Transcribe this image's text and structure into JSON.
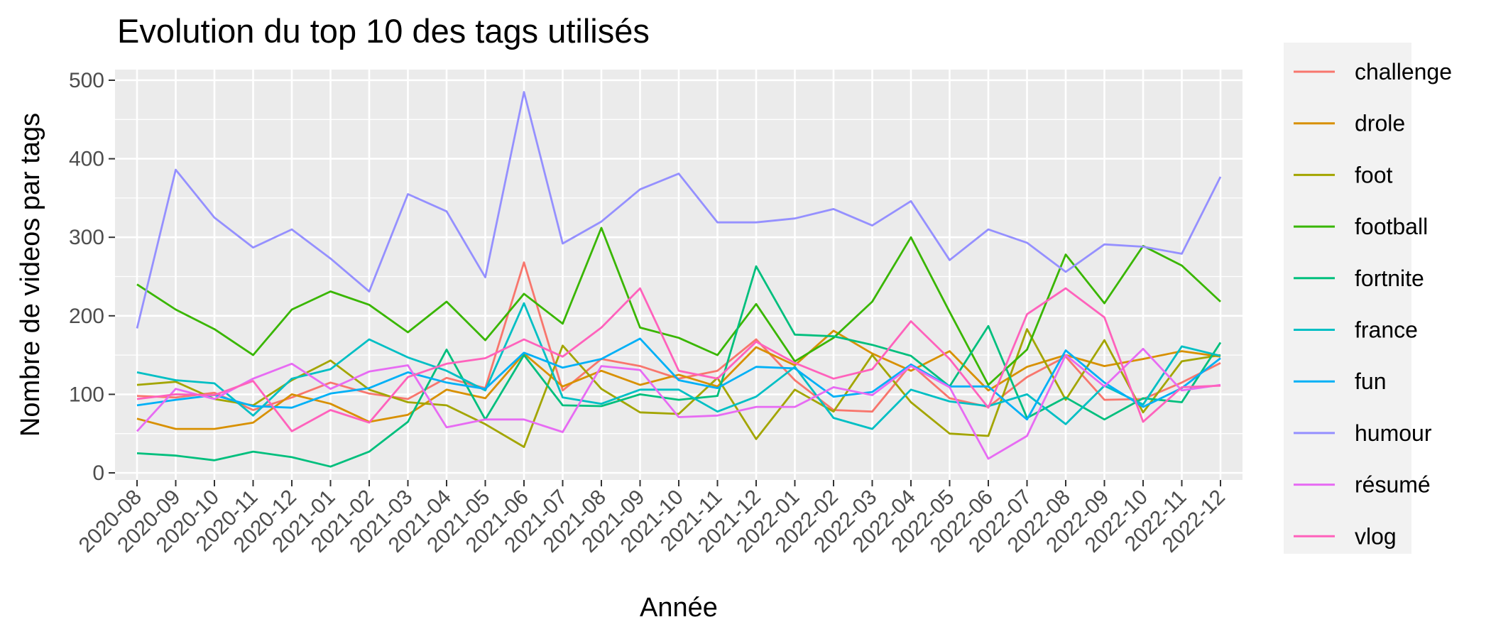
{
  "chart_data": {
    "type": "line",
    "title": "Evolution du top 10 des tags utilisés",
    "xlabel": "Année",
    "ylabel": "Nombre de videos par tags",
    "ylim": [
      0,
      500
    ],
    "yticks": [
      0,
      100,
      200,
      300,
      400,
      500
    ],
    "grid": true,
    "legend_position": "right",
    "x": [
      "2020-08",
      "2020-09",
      "2020-10",
      "2020-11",
      "2020-12",
      "2021-01",
      "2021-02",
      "2021-03",
      "2021-04",
      "2021-05",
      "2021-06",
      "2021-07",
      "2021-08",
      "2021-09",
      "2021-10",
      "2021-11",
      "2021-12",
      "2022-01",
      "2022-02",
      "2022-03",
      "2022-04",
      "2022-05",
      "2022-06",
      "2022-07",
      "2022-08",
      "2022-09",
      "2022-10",
      "2022-11",
      "2022-12"
    ],
    "series": [
      {
        "name": "challenge",
        "color": "#F8766D",
        "values": [
          98,
          96,
          102,
          80,
          96,
          115,
          101,
          94,
          121,
          108,
          268,
          105,
          145,
          136,
          120,
          130,
          170,
          118,
          80,
          78,
          138,
          95,
          84,
          122,
          148,
          93,
          94,
          115,
          140
        ]
      },
      {
        "name": "drole",
        "color": "#D89000",
        "values": [
          69,
          56,
          56,
          64,
          100,
          88,
          65,
          74,
          106,
          95,
          152,
          110,
          130,
          112,
          125,
          110,
          160,
          137,
          181,
          152,
          130,
          155,
          105,
          135,
          150,
          136,
          145,
          155,
          148
        ]
      },
      {
        "name": "foot",
        "color": "#A3A500",
        "values": [
          112,
          116,
          94,
          86,
          118,
          143,
          106,
          90,
          86,
          62,
          33,
          162,
          107,
          77,
          75,
          121,
          43,
          106,
          78,
          150,
          90,
          50,
          47,
          183,
          93,
          169,
          77,
          142,
          150
        ]
      },
      {
        "name": "football",
        "color": "#39B600",
        "values": [
          240,
          208,
          183,
          150,
          208,
          231,
          214,
          179,
          218,
          169,
          228,
          190,
          312,
          185,
          172,
          150,
          215,
          142,
          172,
          218,
          300,
          205,
          112,
          157,
          278,
          216,
          289,
          264,
          218
        ]
      },
      {
        "name": "fortnite",
        "color": "#00BF7D",
        "values": [
          25,
          22,
          16,
          27,
          20,
          8,
          27,
          65,
          157,
          68,
          150,
          86,
          85,
          100,
          93,
          98,
          263,
          176,
          174,
          163,
          149,
          110,
          187,
          70,
          96,
          68,
          95,
          90,
          166
        ]
      },
      {
        "name": "france",
        "color": "#00BFC4",
        "values": [
          128,
          118,
          114,
          73,
          120,
          132,
          170,
          147,
          130,
          105,
          216,
          96,
          88,
          106,
          106,
          78,
          97,
          135,
          70,
          56,
          106,
          91,
          85,
          100,
          62,
          111,
          87,
          161,
          149
        ]
      },
      {
        "name": "fun",
        "color": "#00B0F6",
        "values": [
          86,
          93,
          99,
          85,
          83,
          101,
          108,
          128,
          115,
          107,
          153,
          134,
          145,
          171,
          118,
          108,
          135,
          133,
          97,
          103,
          138,
          110,
          110,
          68,
          156,
          115,
          84,
          108,
          146
        ]
      },
      {
        "name": "humour",
        "color": "#9590FF",
        "values": [
          184,
          386,
          325,
          287,
          310,
          273,
          231,
          355,
          333,
          249,
          485,
          292,
          320,
          361,
          381,
          319,
          319,
          324,
          336,
          315,
          346,
          271,
          310,
          293,
          256,
          291,
          288,
          279,
          377
        ]
      },
      {
        "name": "résumé",
        "color": "#E76BF3",
        "values": [
          53,
          107,
          94,
          120,
          139,
          107,
          129,
          137,
          58,
          68,
          68,
          52,
          136,
          131,
          71,
          73,
          84,
          84,
          109,
          99,
          136,
          109,
          18,
          47,
          150,
          110,
          158,
          105,
          112
        ]
      },
      {
        "name": "vlog",
        "color": "#FF62BC",
        "values": [
          94,
          100,
          99,
          117,
          53,
          80,
          64,
          122,
          139,
          146,
          170,
          148,
          185,
          235,
          130,
          120,
          167,
          140,
          120,
          132,
          193,
          145,
          83,
          202,
          235,
          198,
          65,
          109,
          111
        ]
      }
    ]
  }
}
